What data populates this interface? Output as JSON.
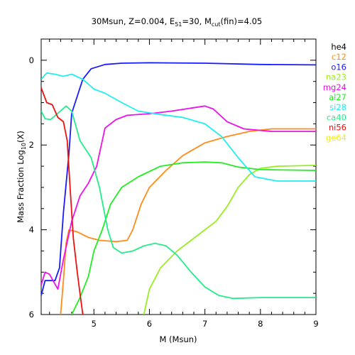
{
  "chart_data": {
    "type": "line",
    "title_parts": {
      "lead": "30Msun, Z=0.004, E",
      "sub1": "51",
      "mid": "=30, M",
      "sub2": "cut",
      "tail": "(fin)=4.05"
    },
    "xlabel": "M (Msun)",
    "ylabel_parts": {
      "lead": "Mass Fraction Log",
      "sub": "10",
      "tail": "(X)"
    },
    "xlim": [
      4.05,
      9
    ],
    "ylim": [
      -6,
      0.5
    ],
    "x_ticks": [
      5,
      6,
      7,
      8,
      9
    ],
    "x_tick_labels": [
      "5",
      "6",
      "7",
      "8",
      "9"
    ],
    "y_ticks": [
      0,
      -2,
      -4,
      -6
    ],
    "y_tick_labels": [
      "0",
      "2",
      "4",
      "6"
    ],
    "grid": false,
    "legend_position": "right",
    "series": [
      {
        "name": "he4",
        "color": "#000000",
        "points": []
      },
      {
        "name": "c12",
        "color": "#ff8c1a",
        "points": [
          [
            4.4,
            -6.0
          ],
          [
            4.45,
            -5.2
          ],
          [
            4.5,
            -4.3
          ],
          [
            4.55,
            -4.0
          ],
          [
            4.7,
            -4.05
          ],
          [
            4.9,
            -4.18
          ],
          [
            5.1,
            -4.25
          ],
          [
            5.4,
            -4.28
          ],
          [
            5.6,
            -4.25
          ],
          [
            5.7,
            -4.0
          ],
          [
            5.85,
            -3.4
          ],
          [
            6.0,
            -3.0
          ],
          [
            6.3,
            -2.6
          ],
          [
            6.6,
            -2.25
          ],
          [
            7.0,
            -1.95
          ],
          [
            7.4,
            -1.8
          ],
          [
            7.8,
            -1.68
          ],
          [
            8.2,
            -1.62
          ],
          [
            9.0,
            -1.62
          ]
        ]
      },
      {
        "name": "o16",
        "color": "#1a1aff",
        "points": [
          [
            4.05,
            -5.55
          ],
          [
            4.12,
            -5.2
          ],
          [
            4.3,
            -5.2
          ],
          [
            4.38,
            -4.9
          ],
          [
            4.45,
            -3.6
          ],
          [
            4.55,
            -2.2
          ],
          [
            4.6,
            -1.25
          ],
          [
            4.7,
            -0.85
          ],
          [
            4.8,
            -0.45
          ],
          [
            4.95,
            -0.2
          ],
          [
            5.2,
            -0.1
          ],
          [
            5.5,
            -0.07
          ],
          [
            6.0,
            -0.06
          ],
          [
            7.0,
            -0.07
          ],
          [
            8.0,
            -0.1
          ],
          [
            9.0,
            -0.11
          ]
        ]
      },
      {
        "name": "na23",
        "color": "#99ee22",
        "points": [
          [
            5.9,
            -6.0
          ],
          [
            6.0,
            -5.4
          ],
          [
            6.2,
            -4.9
          ],
          [
            6.5,
            -4.5
          ],
          [
            6.9,
            -4.1
          ],
          [
            7.2,
            -3.8
          ],
          [
            7.4,
            -3.45
          ],
          [
            7.6,
            -3.0
          ],
          [
            7.8,
            -2.7
          ],
          [
            8.0,
            -2.55
          ],
          [
            8.3,
            -2.5
          ],
          [
            9.0,
            -2.48
          ]
        ]
      },
      {
        "name": "mg24",
        "color": "#ee11ee",
        "points": [
          [
            4.05,
            -5.3
          ],
          [
            4.12,
            -5.0
          ],
          [
            4.2,
            -5.05
          ],
          [
            4.35,
            -5.4
          ],
          [
            4.45,
            -4.7
          ],
          [
            4.6,
            -3.8
          ],
          [
            4.75,
            -3.2
          ],
          [
            4.9,
            -2.9
          ],
          [
            5.05,
            -2.5
          ],
          [
            5.2,
            -1.6
          ],
          [
            5.4,
            -1.4
          ],
          [
            5.6,
            -1.3
          ],
          [
            6.0,
            -1.26
          ],
          [
            6.4,
            -1.2
          ],
          [
            6.8,
            -1.12
          ],
          [
            7.0,
            -1.08
          ],
          [
            7.15,
            -1.15
          ],
          [
            7.4,
            -1.45
          ],
          [
            7.7,
            -1.62
          ],
          [
            8.2,
            -1.68
          ],
          [
            9.0,
            -1.68
          ]
        ]
      },
      {
        "name": "al27",
        "color": "#22ee22",
        "points": [
          [
            4.6,
            -6.0
          ],
          [
            4.75,
            -5.6
          ],
          [
            4.9,
            -5.1
          ],
          [
            5.0,
            -4.5
          ],
          [
            5.15,
            -4.0
          ],
          [
            5.3,
            -3.4
          ],
          [
            5.5,
            -3.0
          ],
          [
            5.8,
            -2.75
          ],
          [
            6.2,
            -2.5
          ],
          [
            6.6,
            -2.42
          ],
          [
            7.0,
            -2.4
          ],
          [
            7.3,
            -2.42
          ],
          [
            7.6,
            -2.52
          ],
          [
            8.0,
            -2.58
          ],
          [
            9.0,
            -2.6
          ]
        ]
      },
      {
        "name": "si28",
        "color": "#22eeee",
        "points": [
          [
            4.05,
            -0.45
          ],
          [
            4.15,
            -0.3
          ],
          [
            4.3,
            -0.33
          ],
          [
            4.45,
            -0.38
          ],
          [
            4.6,
            -0.33
          ],
          [
            4.8,
            -0.45
          ],
          [
            5.0,
            -0.68
          ],
          [
            5.2,
            -0.78
          ],
          [
            5.5,
            -1.0
          ],
          [
            5.8,
            -1.2
          ],
          [
            6.2,
            -1.28
          ],
          [
            6.6,
            -1.35
          ],
          [
            7.0,
            -1.5
          ],
          [
            7.3,
            -1.8
          ],
          [
            7.6,
            -2.3
          ],
          [
            7.9,
            -2.75
          ],
          [
            8.3,
            -2.85
          ],
          [
            9.0,
            -2.85
          ]
        ]
      },
      {
        "name": "ca40",
        "color": "#22ee88",
        "points": [
          [
            4.05,
            -1.2
          ],
          [
            4.12,
            -1.38
          ],
          [
            4.22,
            -1.4
          ],
          [
            4.35,
            -1.25
          ],
          [
            4.5,
            -1.08
          ],
          [
            4.6,
            -1.2
          ],
          [
            4.75,
            -1.9
          ],
          [
            4.95,
            -2.3
          ],
          [
            5.1,
            -3.0
          ],
          [
            5.25,
            -4.0
          ],
          [
            5.35,
            -4.42
          ],
          [
            5.5,
            -4.55
          ],
          [
            5.7,
            -4.5
          ],
          [
            5.9,
            -4.38
          ],
          [
            6.1,
            -4.32
          ],
          [
            6.3,
            -4.38
          ],
          [
            6.5,
            -4.6
          ],
          [
            6.75,
            -5.0
          ],
          [
            7.0,
            -5.35
          ],
          [
            7.25,
            -5.55
          ],
          [
            7.5,
            -5.62
          ],
          [
            8.0,
            -5.6
          ],
          [
            9.0,
            -5.6
          ]
        ]
      },
      {
        "name": "ni56",
        "color": "#ee1111",
        "points": [
          [
            4.05,
            -0.65
          ],
          [
            4.15,
            -1.0
          ],
          [
            4.25,
            -1.05
          ],
          [
            4.35,
            -1.35
          ],
          [
            4.45,
            -1.45
          ],
          [
            4.52,
            -1.9
          ],
          [
            4.57,
            -3.0
          ],
          [
            4.63,
            -4.2
          ],
          [
            4.7,
            -5.0
          ],
          [
            4.75,
            -5.5
          ],
          [
            4.8,
            -6.0
          ]
        ]
      },
      {
        "name": "ge64",
        "color": "#eeee11",
        "points": []
      }
    ]
  }
}
